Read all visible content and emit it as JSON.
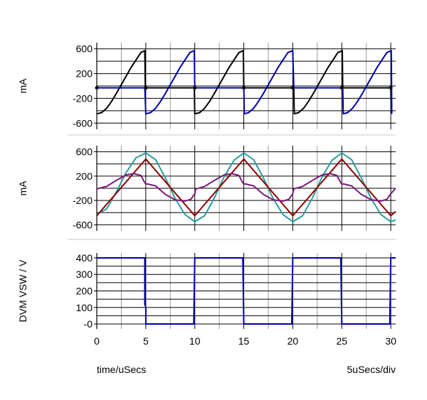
{
  "chart_data": [
    {
      "type": "line",
      "ylabel": "mA",
      "ylim": [
        -700,
        700
      ],
      "yticks": [
        600,
        200,
        -200,
        -600
      ],
      "xlim": [
        0,
        30.5
      ],
      "grid": true,
      "series": [
        {
          "color": "#000000",
          "points": [
            [
              0,
              -450
            ],
            [
              0.5,
              -430
            ],
            [
              1.0,
              -360
            ],
            [
              1.5,
              -250
            ],
            [
              2.0,
              -120
            ],
            [
              2.5,
              20
            ],
            [
              3.0,
              160
            ],
            [
              3.5,
              300
            ],
            [
              4.0,
              420
            ],
            [
              4.5,
              540
            ],
            [
              4.9,
              570
            ],
            [
              4.95,
              -30
            ],
            [
              5.0,
              -30
            ],
            [
              6,
              -30
            ],
            [
              7,
              -30
            ],
            [
              8,
              -30
            ],
            [
              9,
              -30
            ],
            [
              9.95,
              -30
            ],
            [
              10.0,
              -450
            ],
            [
              10.5,
              -430
            ],
            [
              11.0,
              -360
            ],
            [
              11.5,
              -250
            ],
            [
              12.0,
              -120
            ],
            [
              12.5,
              20
            ],
            [
              13.0,
              160
            ],
            [
              13.5,
              300
            ],
            [
              14.0,
              420
            ],
            [
              14.5,
              540
            ],
            [
              14.95,
              570
            ],
            [
              15.0,
              -30
            ],
            [
              16,
              -30
            ],
            [
              17,
              -30
            ],
            [
              18,
              -30
            ],
            [
              19,
              -30
            ],
            [
              20.1,
              -30
            ],
            [
              20.15,
              -450
            ],
            [
              20.6,
              -430
            ],
            [
              21.1,
              -360
            ],
            [
              21.6,
              -250
            ],
            [
              22.1,
              -120
            ],
            [
              22.6,
              20
            ],
            [
              23.1,
              160
            ],
            [
              23.6,
              300
            ],
            [
              24.1,
              420
            ],
            [
              24.6,
              540
            ],
            [
              25.05,
              570
            ],
            [
              25.1,
              -30
            ],
            [
              26,
              -30
            ],
            [
              27,
              -30
            ],
            [
              28,
              -30
            ],
            [
              29,
              -30
            ],
            [
              30.0,
              -30
            ],
            [
              30.05,
              -450
            ]
          ]
        },
        {
          "color": "#0000a8",
          "points": [
            [
              0,
              -30
            ],
            [
              1,
              -30
            ],
            [
              2,
              -30
            ],
            [
              3,
              -30
            ],
            [
              4,
              -30
            ],
            [
              4.9,
              -30
            ],
            [
              5.0,
              -450
            ],
            [
              5.5,
              -430
            ],
            [
              6.0,
              -360
            ],
            [
              6.5,
              -250
            ],
            [
              7.0,
              -120
            ],
            [
              7.5,
              20
            ],
            [
              8.0,
              160
            ],
            [
              8.5,
              300
            ],
            [
              9.0,
              420
            ],
            [
              9.5,
              540
            ],
            [
              9.95,
              570
            ],
            [
              10.0,
              -30
            ],
            [
              11,
              -30
            ],
            [
              12,
              -30
            ],
            [
              13,
              -30
            ],
            [
              14,
              -30
            ],
            [
              15.0,
              -30
            ],
            [
              15.05,
              -450
            ],
            [
              15.5,
              -430
            ],
            [
              16.0,
              -360
            ],
            [
              16.5,
              -250
            ],
            [
              17.0,
              -120
            ],
            [
              17.5,
              20
            ],
            [
              18.0,
              160
            ],
            [
              18.5,
              300
            ],
            [
              19.0,
              420
            ],
            [
              19.5,
              540
            ],
            [
              20.0,
              570
            ],
            [
              20.1,
              -30
            ],
            [
              21,
              -30
            ],
            [
              22,
              -30
            ],
            [
              23,
              -30
            ],
            [
              24,
              -30
            ],
            [
              25.1,
              -30
            ],
            [
              25.15,
              -450
            ],
            [
              25.6,
              -430
            ],
            [
              26.1,
              -360
            ],
            [
              26.6,
              -250
            ],
            [
              27.1,
              -120
            ],
            [
              27.6,
              20
            ],
            [
              28.1,
              160
            ],
            [
              28.6,
              300
            ],
            [
              29.1,
              420
            ],
            [
              29.6,
              540
            ],
            [
              30.05,
              570
            ],
            [
              30.1,
              -450
            ]
          ]
        }
      ]
    },
    {
      "type": "line",
      "ylabel": "mA",
      "ylim": [
        -700,
        700
      ],
      "yticks": [
        600,
        200,
        -200,
        -600
      ],
      "xlim": [
        0,
        30.5
      ],
      "grid": true,
      "series": [
        {
          "color": "#2a9d9d",
          "points": [
            [
              0,
              -430
            ],
            [
              1,
              -340
            ],
            [
              2,
              -60
            ],
            [
              3,
              260
            ],
            [
              4,
              500
            ],
            [
              5,
              580
            ],
            [
              6,
              470
            ],
            [
              7,
              170
            ],
            [
              8,
              -170
            ],
            [
              9,
              -430
            ],
            [
              10,
              -550
            ],
            [
              11,
              -450
            ],
            [
              12,
              -160
            ],
            [
              13,
              190
            ],
            [
              14,
              460
            ],
            [
              15,
              580
            ],
            [
              16,
              470
            ],
            [
              17,
              170
            ],
            [
              18,
              -170
            ],
            [
              19,
              -430
            ],
            [
              20,
              -550
            ],
            [
              21,
              -450
            ],
            [
              22,
              -160
            ],
            [
              23,
              190
            ],
            [
              24,
              460
            ],
            [
              25,
              580
            ],
            [
              26,
              470
            ],
            [
              27,
              170
            ],
            [
              28,
              -170
            ],
            [
              29,
              -430
            ],
            [
              30,
              -550
            ],
            [
              30.5,
              -520
            ]
          ]
        },
        {
          "color": "#8b0000",
          "points": [
            [
              0,
              -450
            ],
            [
              5,
              480
            ],
            [
              10,
              -450
            ],
            [
              15,
              480
            ],
            [
              20,
              -450
            ],
            [
              25,
              480
            ],
            [
              30,
              -450
            ],
            [
              30.5,
              -380
            ]
          ]
        },
        {
          "color": "#7a1a7a",
          "points": [
            [
              0,
              -10
            ],
            [
              1,
              30
            ],
            [
              2,
              130
            ],
            [
              3,
              220
            ],
            [
              3.8,
              240
            ],
            [
              4.5,
              210
            ],
            [
              4.9,
              90
            ],
            [
              5.0,
              70
            ],
            [
              5.2,
              70
            ],
            [
              6.0,
              40
            ],
            [
              7,
              -100
            ],
            [
              8,
              -190
            ],
            [
              9,
              -210
            ],
            [
              9.6,
              -180
            ],
            [
              10,
              -90
            ],
            [
              10.1,
              -10
            ],
            [
              11,
              30
            ],
            [
              12,
              130
            ],
            [
              13,
              220
            ],
            [
              13.8,
              240
            ],
            [
              14.5,
              210
            ],
            [
              14.9,
              90
            ],
            [
              15.0,
              70
            ],
            [
              15.2,
              70
            ],
            [
              16.0,
              40
            ],
            [
              17,
              -100
            ],
            [
              18,
              -190
            ],
            [
              19,
              -210
            ],
            [
              19.6,
              -180
            ],
            [
              20,
              -90
            ],
            [
              20.1,
              -10
            ],
            [
              21,
              30
            ],
            [
              22,
              130
            ],
            [
              23,
              220
            ],
            [
              23.8,
              240
            ],
            [
              24.5,
              210
            ],
            [
              24.9,
              90
            ],
            [
              25.0,
              70
            ],
            [
              25.2,
              70
            ],
            [
              26.0,
              40
            ],
            [
              27,
              -100
            ],
            [
              28,
              -190
            ],
            [
              29,
              -210
            ],
            [
              29.6,
              -180
            ],
            [
              30,
              -90
            ],
            [
              30.5,
              0
            ]
          ]
        }
      ]
    },
    {
      "type": "line",
      "ylabel": "DVM VSW / V",
      "ylim": [
        -30,
        430
      ],
      "yticks": [
        400,
        300,
        200,
        100,
        0
      ],
      "ytick_labels": [
        "400",
        "300",
        "200",
        "100",
        "-0"
      ],
      "xlim": [
        0,
        30.5
      ],
      "xticks": [
        0,
        5,
        10,
        15,
        20,
        25,
        30
      ],
      "grid": true,
      "series": [
        {
          "color": "#0000a8",
          "points": [
            [
              0,
              400
            ],
            [
              4.9,
              400
            ],
            [
              4.9,
              120
            ],
            [
              5.0,
              100
            ],
            [
              5.0,
              0
            ],
            [
              9.9,
              0
            ],
            [
              10.0,
              400
            ],
            [
              14.9,
              400
            ],
            [
              15.0,
              0
            ],
            [
              19.9,
              0
            ],
            [
              20.0,
              400
            ],
            [
              24.9,
              400
            ],
            [
              25.0,
              0
            ],
            [
              29.9,
              0
            ],
            [
              30.0,
              400
            ],
            [
              30.5,
              400
            ]
          ]
        }
      ]
    }
  ],
  "labels": {
    "x_axis": "time/uSecs",
    "scale": "5uSecs/div"
  }
}
